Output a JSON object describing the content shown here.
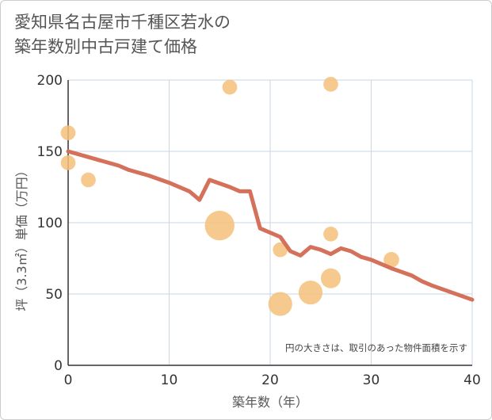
{
  "title_lines": [
    "愛知県名古屋市千種区若水の",
    "築年数別中古戸建て価格"
  ],
  "chart_data": {
    "type": "scatter",
    "title": "愛知県名古屋市千種区若水の築年数別中古戸建て価格",
    "xlabel": "築年数（年）",
    "ylabel": "坪（3.3㎡）単価（万円）",
    "xlim": [
      0,
      40
    ],
    "ylim": [
      0,
      200
    ],
    "xticks": [
      0,
      10,
      20,
      30,
      40
    ],
    "yticks": [
      0,
      50,
      100,
      150,
      200
    ],
    "grid": true,
    "note": "円の大きさは、取引のあった物件面積を示す",
    "colors": {
      "points": "#f5c07a",
      "line": "#d5705a"
    },
    "points": [
      {
        "x": 0,
        "y": 163,
        "size": 1
      },
      {
        "x": 0,
        "y": 142,
        "size": 1
      },
      {
        "x": 2,
        "y": 130,
        "size": 1
      },
      {
        "x": 15,
        "y": 98,
        "size": 4
      },
      {
        "x": 16,
        "y": 195,
        "size": 1
      },
      {
        "x": 21,
        "y": 81,
        "size": 1
      },
      {
        "x": 21,
        "y": 43,
        "size": 2.6
      },
      {
        "x": 24,
        "y": 51,
        "size": 2.6
      },
      {
        "x": 26,
        "y": 197,
        "size": 1
      },
      {
        "x": 26,
        "y": 92,
        "size": 1
      },
      {
        "x": 26,
        "y": 61,
        "size": 1.8
      },
      {
        "x": 32,
        "y": 74,
        "size": 1.1
      }
    ],
    "trend_line": {
      "x": [
        0,
        2,
        4,
        5,
        6,
        8,
        10,
        12,
        13,
        14,
        16,
        17,
        18,
        19,
        21,
        22,
        23,
        24,
        25,
        26,
        27,
        28,
        29,
        30,
        32,
        34,
        35,
        36,
        38,
        40
      ],
      "y": [
        150,
        146,
        142,
        140,
        137,
        133,
        128,
        122,
        116,
        130,
        125,
        122,
        122,
        96,
        90,
        80,
        77,
        83,
        81,
        78,
        82,
        80,
        76,
        74,
        68,
        63,
        59,
        56,
        51,
        46
      ]
    }
  }
}
